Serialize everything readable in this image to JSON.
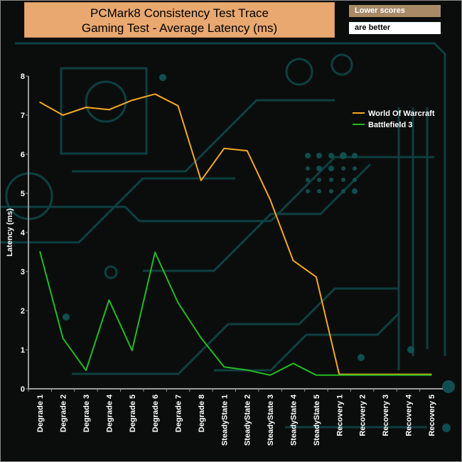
{
  "title_line1": "PCMark8 Consistency Test Trace",
  "title_line2": "Gaming Test -  Average Latency (ms)",
  "note_line1": "Lower scores",
  "note_line2": "are better",
  "chart_data": {
    "type": "line",
    "ylabel": "Latency (ms)",
    "xlabel": "",
    "ylim": [
      0,
      8
    ],
    "yticks": [
      "0",
      "1",
      "2",
      "3",
      "4",
      "5",
      "6",
      "7",
      "8"
    ],
    "categories": [
      "Degrade 1",
      "Degrade 2",
      "Degrade 3",
      "Degrade 4",
      "Degrade 5",
      "Degrade 6",
      "Degrade 7",
      "Degrade 8",
      "SteadyState 1",
      "SteadyState 2",
      "SteadyState 3",
      "SteadyState 4",
      "SteadyState 5",
      "Recovery 1",
      "Recovery 2",
      "Recovery 3",
      "Recovery 4",
      "Recovery 5"
    ],
    "legend_position": "top-right",
    "grid": false,
    "series": [
      {
        "name": "World Of Warcraft",
        "color": "#f5a81e",
        "values": [
          7.33,
          7.0,
          7.2,
          7.14,
          7.38,
          7.54,
          7.24,
          5.33,
          6.15,
          6.09,
          4.84,
          3.28,
          2.86,
          0.37,
          0.37,
          0.37,
          0.37,
          0.37
        ]
      },
      {
        "name": "Battlefield 3",
        "color": "#22bb22",
        "values": [
          3.51,
          1.29,
          0.47,
          2.27,
          0.98,
          3.49,
          2.2,
          1.3,
          0.56,
          0.48,
          0.35,
          0.65,
          0.35,
          0.35,
          0.35,
          0.35,
          0.35,
          0.35
        ]
      }
    ]
  }
}
